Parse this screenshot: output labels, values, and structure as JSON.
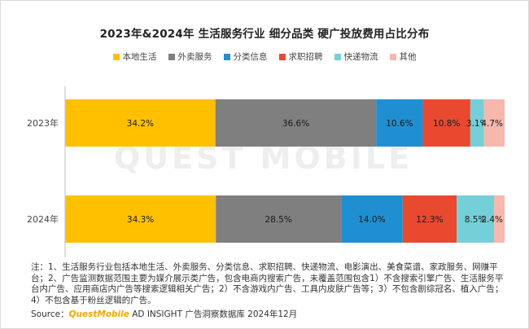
{
  "chart_data": {
    "type": "bar",
    "orientation": "horizontal",
    "stacked": true,
    "percent": true,
    "title": "2023年&2024年 生活服务行业 细分品类 硬广投放费用占比分布",
    "categories": [
      "2023年",
      "2024年"
    ],
    "xlim": [
      0,
      100
    ],
    "grid": false,
    "legend_position": "top",
    "series": [
      {
        "name": "本地生活",
        "color": "#ffc000",
        "values": [
          34.2,
          34.3
        ],
        "labels": [
          "34.2%",
          "34.3%"
        ]
      },
      {
        "name": "外卖服务",
        "color": "#7f7f7f",
        "values": [
          36.6,
          28.5
        ],
        "labels": [
          "36.6%",
          "28.5%"
        ]
      },
      {
        "name": "分类信息",
        "color": "#1f8fd1",
        "values": [
          10.6,
          14.0
        ],
        "labels": [
          "10.6%",
          "14.0%"
        ]
      },
      {
        "name": "求职招聘",
        "color": "#e8492f",
        "values": [
          10.8,
          12.3
        ],
        "labels": [
          "10.8%",
          "12.3%"
        ]
      },
      {
        "name": "快递物流",
        "color": "#74cfd8",
        "values": [
          3.1,
          8.5
        ],
        "labels": [
          "3.1%",
          "8.5%"
        ]
      },
      {
        "name": "其他",
        "color": "#f6b8ac",
        "values": [
          4.7,
          2.4
        ],
        "labels": [
          "4.7%",
          "2.4%"
        ]
      }
    ]
  },
  "watermark": "QUEST MOBILE",
  "note": "注：1、生活服务行业包括本地生活、外卖服务、分类信息、求职招聘、快递物流、电影演出、美食菜谱、家政服务、网赚平台；2、广告监测数据范围主要为媒介展示类广告，包含电商内搜索广告，未覆盖范围包含1）不含搜索引擎广告、生活服务平台内广告、应用商店内广告等搜索逻辑相关广告；2）不含游戏内广告、工具内皮肤广告等；3）不包含剧综冠名、植入广告；4）不包含基于粉丝逻辑的广告。",
  "source": {
    "prefix": "Source：",
    "brand": "QuestMobile",
    "rest": " AD INSIGHT 广告洞察数据库 2024年12月"
  }
}
